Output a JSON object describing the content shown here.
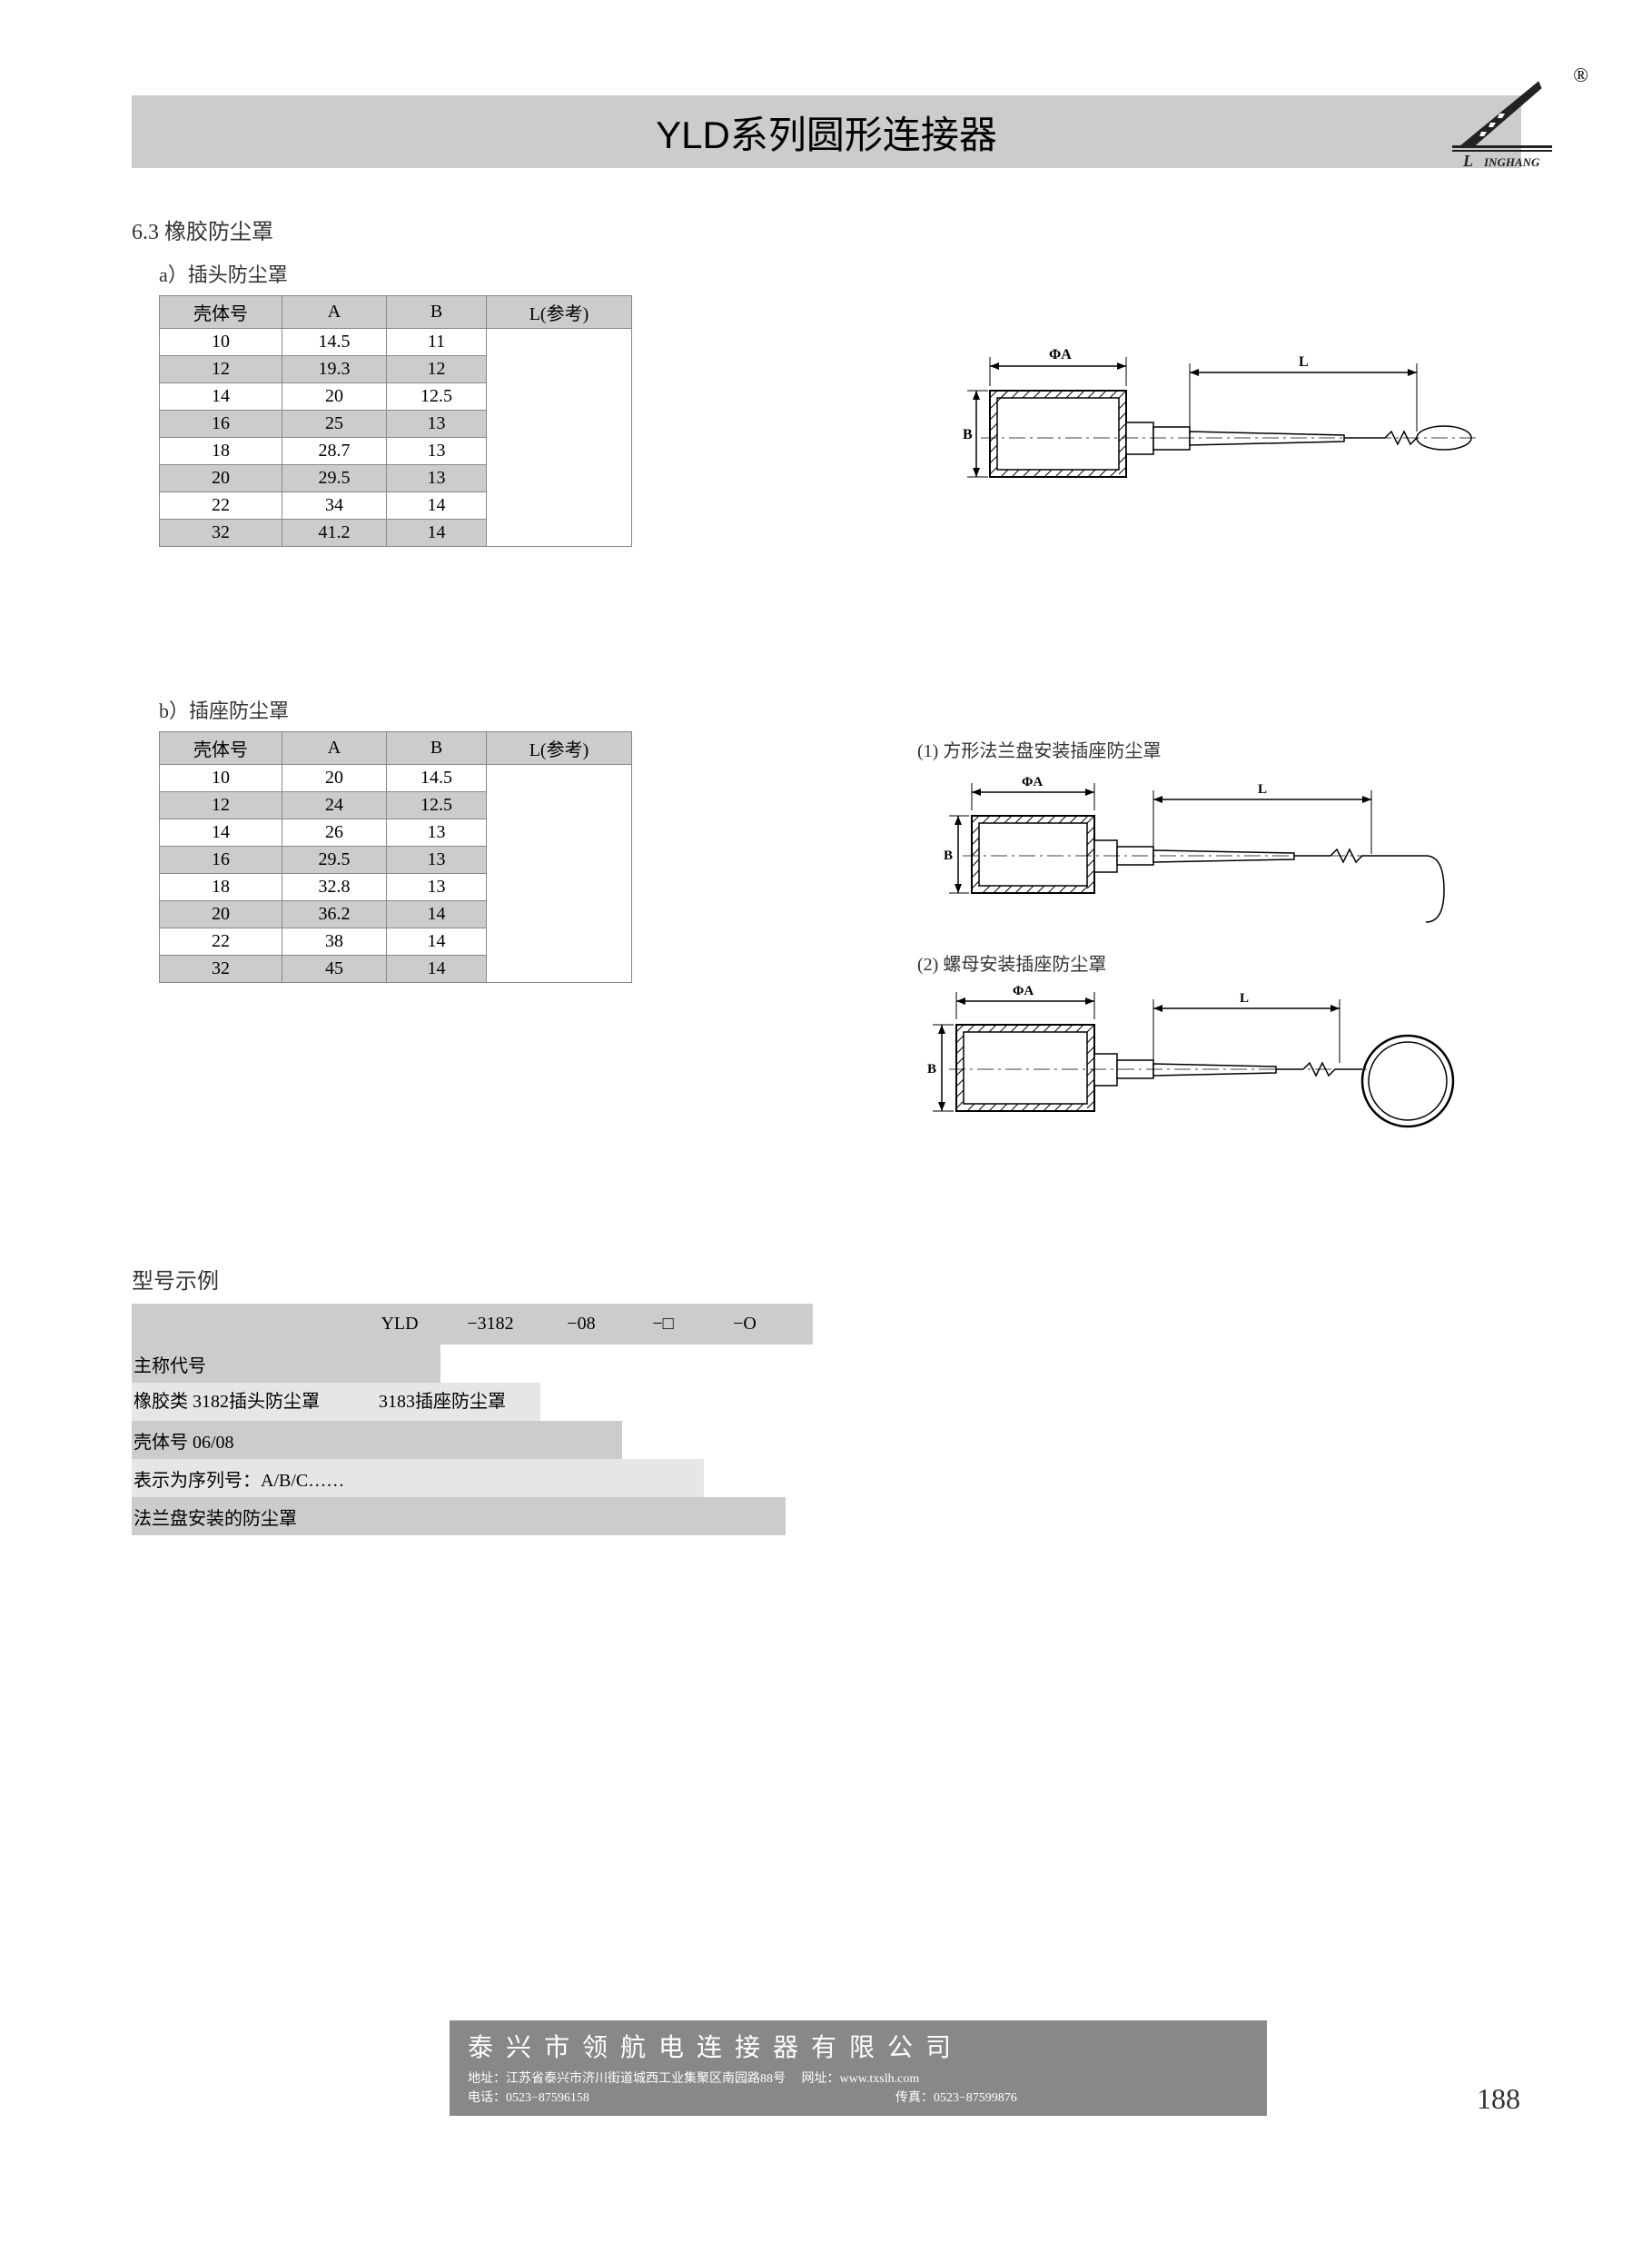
{
  "header": {
    "title": "YLD系列圆形连接器",
    "logo_text": "LINGHANG",
    "reg_mark": "®"
  },
  "section_6_3": {
    "heading": "6.3 橡胶防尘罩",
    "sub_a": "a）插头防尘罩",
    "sub_b": "b）插座防尘罩"
  },
  "table_a": {
    "columns": [
      "壳体号",
      "A",
      "B",
      "L(参考)"
    ],
    "rows": [
      [
        "10",
        "14.5",
        "11",
        ""
      ],
      [
        "12",
        "19.3",
        "12",
        ""
      ],
      [
        "14",
        "20",
        "12.5",
        ""
      ],
      [
        "16",
        "25",
        "13",
        ""
      ],
      [
        "18",
        "28.7",
        "13",
        ""
      ],
      [
        "20",
        "29.5",
        "13",
        ""
      ],
      [
        "22",
        "34",
        "14",
        ""
      ],
      [
        "32",
        "41.2",
        "14",
        ""
      ]
    ],
    "shaded": [
      1,
      3,
      5,
      7
    ]
  },
  "table_b": {
    "columns": [
      "壳体号",
      "A",
      "B",
      "L(参考)"
    ],
    "rows": [
      [
        "10",
        "20",
        "14.5",
        ""
      ],
      [
        "12",
        "24",
        "12.5",
        ""
      ],
      [
        "14",
        "26",
        "13",
        ""
      ],
      [
        "16",
        "29.5",
        "13",
        ""
      ],
      [
        "18",
        "32.8",
        "13",
        ""
      ],
      [
        "20",
        "36.2",
        "14",
        ""
      ],
      [
        "22",
        "38",
        "14",
        ""
      ],
      [
        "32",
        "45",
        "14",
        ""
      ]
    ],
    "shaded": [
      1,
      3,
      5,
      7
    ]
  },
  "diagrams": {
    "label_1": "(1) 方形法兰盘安装插座防尘罩",
    "label_2": "(2) 螺母安装插座防尘罩",
    "dim_phi_a": "ΦA",
    "dim_l": "L",
    "dim_b": "B"
  },
  "model_example": {
    "title": "型号示例",
    "header_cells": [
      "",
      "YLD",
      "−3182",
      "−08",
      "−□",
      "−O"
    ],
    "rows": [
      "主称代号",
      "橡胶类 3182插头防尘罩\n　　　 3183插座防尘罩",
      "壳体号 06/08",
      "表示为序列号：A/B/C……",
      "法兰盘安装的防尘罩"
    ]
  },
  "footer": {
    "company": "泰兴市领航电连接器有限公司",
    "address_label": "地址：",
    "address": "江苏省泰兴市济川街道城西工业集聚区南园路88号",
    "web_label": "网址：",
    "web": "www.txslh.com",
    "tel_label": "电话：",
    "tel": "0523−87596158",
    "fax_label": "传真：",
    "fax": "0523−87599876"
  },
  "page_number": "188"
}
